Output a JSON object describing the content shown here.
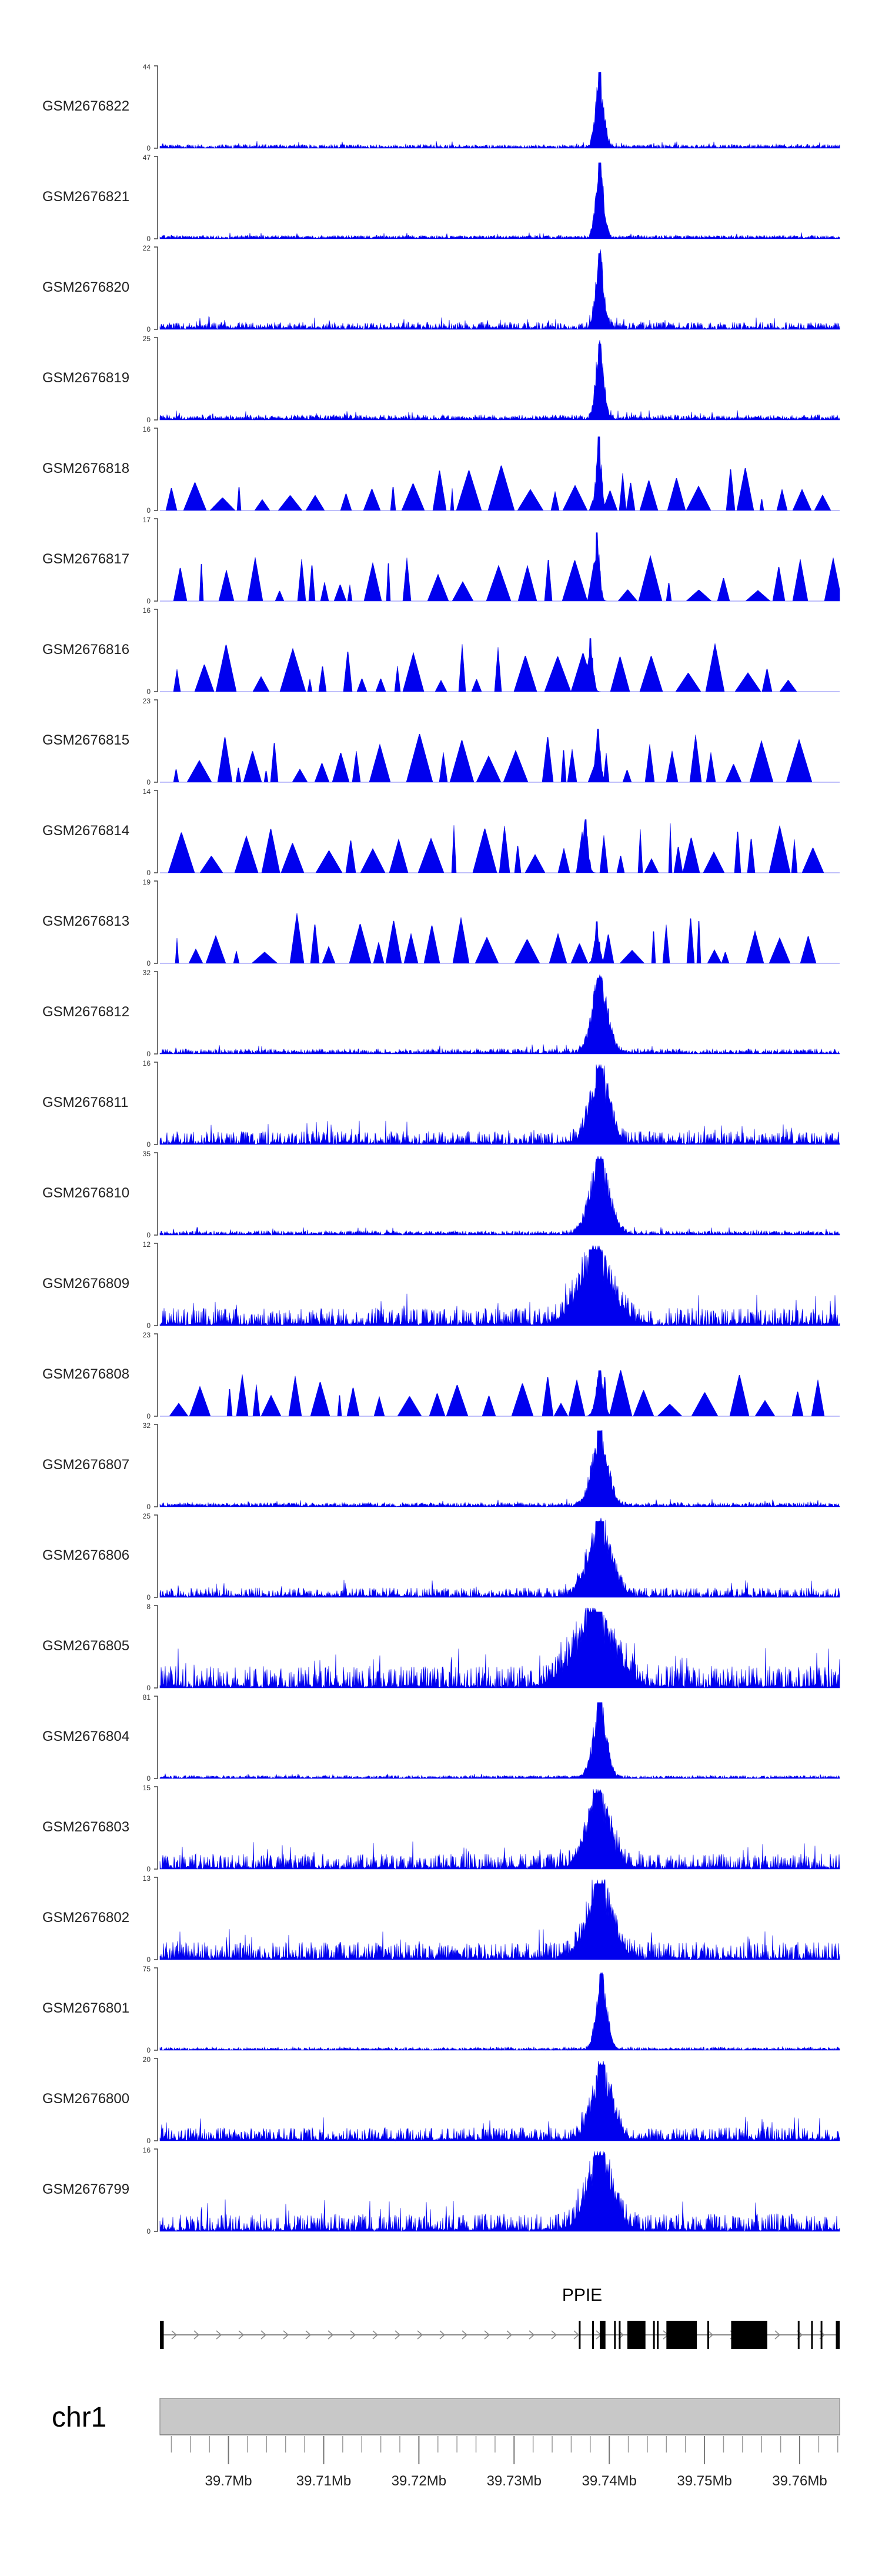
{
  "chart_data": {
    "type": "area",
    "colors": {
      "signal": "#0000ee",
      "axis": "#444444",
      "ideogram": "#c8c8c8",
      "gene": "#000000"
    },
    "x_range": [
      39.6928,
      39.7642
    ],
    "x_unit": "Mb",
    "x_ticks": [
      {
        "value": 39.7,
        "label": "39.7Mb"
      },
      {
        "value": 39.71,
        "label": "39.71Mb"
      },
      {
        "value": 39.72,
        "label": "39.72Mb"
      },
      {
        "value": 39.73,
        "label": "39.73Mb"
      },
      {
        "value": 39.74,
        "label": "39.74Mb"
      },
      {
        "value": 39.75,
        "label": "39.75Mb"
      },
      {
        "value": 39.76,
        "label": "39.76Mb"
      }
    ],
    "chromosome": "chr1",
    "gene": {
      "name": "PPIE",
      "start": 39.6928,
      "end": 39.7642,
      "strand": "+",
      "exons": [
        {
          "start": 39.6928,
          "end": 39.6932
        },
        {
          "start": 39.739,
          "end": 39.7396
        },
        {
          "start": 39.7419,
          "end": 39.7438
        },
        {
          "start": 39.746,
          "end": 39.7492
        },
        {
          "start": 39.7528,
          "end": 39.7566
        },
        {
          "start": 39.7638,
          "end": 39.7642
        }
      ]
    },
    "tracks": [
      {
        "name": "GSM2676822",
        "ymin": 0,
        "ymax": 44,
        "peak": 39.739,
        "peak_frac": 1.0,
        "peak_width": 0.0006,
        "background": 0.09,
        "style": "dense",
        "seed": 1
      },
      {
        "name": "GSM2676821",
        "ymin": 0,
        "ymax": 47,
        "peak": 39.739,
        "peak_frac": 1.0,
        "peak_width": 0.0006,
        "background": 0.08,
        "style": "dense",
        "seed": 2
      },
      {
        "name": "GSM2676820",
        "ymin": 0,
        "ymax": 22,
        "peak": 39.739,
        "peak_frac": 1.0,
        "peak_width": 0.0006,
        "background": 0.16,
        "style": "dense",
        "seed": 3
      },
      {
        "name": "GSM2676819",
        "ymin": 0,
        "ymax": 25,
        "peak": 39.739,
        "peak_frac": 1.0,
        "peak_width": 0.0006,
        "background": 0.12,
        "style": "dense",
        "seed": 4
      },
      {
        "name": "GSM2676818",
        "ymin": 0,
        "ymax": 16,
        "peak": 39.7389,
        "peak_frac": 0.97,
        "peak_width": 0.0004,
        "background": 0.5,
        "style": "spiky",
        "seed": 5
      },
      {
        "name": "GSM2676817",
        "ymin": 0,
        "ymax": 17,
        "peak": 39.7387,
        "peak_frac": 0.9,
        "peak_width": 0.0004,
        "background": 0.5,
        "style": "spiky",
        "seed": 6
      },
      {
        "name": "GSM2676816",
        "ymin": 0,
        "ymax": 16,
        "peak": 39.738,
        "peak_frac": 0.7,
        "peak_width": 0.0004,
        "background": 0.55,
        "style": "spiky",
        "seed": 7
      },
      {
        "name": "GSM2676815",
        "ymin": 0,
        "ymax": 23,
        "peak": 39.7388,
        "peak_frac": 0.7,
        "peak_width": 0.0004,
        "background": 0.55,
        "style": "spiky",
        "seed": 8
      },
      {
        "name": "GSM2676814",
        "ymin": 0,
        "ymax": 14,
        "peak": 39.7375,
        "peak_frac": 0.7,
        "peak_width": 0.0004,
        "background": 0.55,
        "style": "spiky",
        "seed": 9
      },
      {
        "name": "GSM2676813",
        "ymin": 0,
        "ymax": 19,
        "peak": 39.7387,
        "peak_frac": 0.55,
        "peak_width": 0.0004,
        "background": 0.55,
        "style": "spiky",
        "seed": 10
      },
      {
        "name": "GSM2676812",
        "ymin": 0,
        "ymax": 32,
        "peak": 39.739,
        "peak_frac": 1.0,
        "peak_width": 0.0012,
        "background": 0.12,
        "style": "dense",
        "seed": 11
      },
      {
        "name": "GSM2676811",
        "ymin": 0,
        "ymax": 16,
        "peak": 39.739,
        "peak_frac": 1.0,
        "peak_width": 0.0015,
        "background": 0.3,
        "style": "dense",
        "seed": 12
      },
      {
        "name": "GSM2676810",
        "ymin": 0,
        "ymax": 35,
        "peak": 39.739,
        "peak_frac": 1.0,
        "peak_width": 0.0015,
        "background": 0.1,
        "style": "dense",
        "seed": 13
      },
      {
        "name": "GSM2676809",
        "ymin": 0,
        "ymax": 12,
        "peak": 39.7385,
        "peak_frac": 1.0,
        "peak_width": 0.0025,
        "background": 0.4,
        "style": "dense",
        "seed": 14
      },
      {
        "name": "GSM2676808",
        "ymin": 0,
        "ymax": 23,
        "peak": 39.739,
        "peak_frac": 0.6,
        "peak_width": 0.0006,
        "background": 0.55,
        "style": "spiky",
        "seed": 15
      },
      {
        "name": "GSM2676807",
        "ymin": 0,
        "ymax": 32,
        "peak": 39.739,
        "peak_frac": 1.0,
        "peak_width": 0.0012,
        "background": 0.1,
        "style": "dense",
        "seed": 16
      },
      {
        "name": "GSM2676806",
        "ymin": 0,
        "ymax": 25,
        "peak": 39.739,
        "peak_frac": 1.0,
        "peak_width": 0.0018,
        "background": 0.22,
        "style": "dense",
        "seed": 17
      },
      {
        "name": "GSM2676805",
        "ymin": 0,
        "ymax": 8,
        "peak": 39.7385,
        "peak_frac": 1.0,
        "peak_width": 0.003,
        "background": 0.5,
        "style": "dense",
        "seed": 18
      },
      {
        "name": "GSM2676804",
        "ymin": 0,
        "ymax": 81,
        "peak": 39.739,
        "peak_frac": 1.0,
        "peak_width": 0.001,
        "background": 0.06,
        "style": "dense",
        "seed": 19
      },
      {
        "name": "GSM2676803",
        "ymin": 0,
        "ymax": 15,
        "peak": 39.7388,
        "peak_frac": 1.0,
        "peak_width": 0.0018,
        "background": 0.35,
        "style": "dense",
        "seed": 20
      },
      {
        "name": "GSM2676802",
        "ymin": 0,
        "ymax": 13,
        "peak": 39.739,
        "peak_frac": 1.0,
        "peak_width": 0.002,
        "background": 0.4,
        "style": "dense",
        "seed": 21
      },
      {
        "name": "GSM2676801",
        "ymin": 0,
        "ymax": 75,
        "peak": 39.7392,
        "peak_frac": 1.0,
        "peak_width": 0.0008,
        "background": 0.05,
        "style": "dense",
        "seed": 22
      },
      {
        "name": "GSM2676800",
        "ymin": 0,
        "ymax": 20,
        "peak": 39.7392,
        "peak_frac": 1.0,
        "peak_width": 0.0015,
        "background": 0.3,
        "style": "dense",
        "seed": 23
      },
      {
        "name": "GSM2676799",
        "ymin": 0,
        "ymax": 16,
        "peak": 39.739,
        "peak_frac": 1.0,
        "peak_width": 0.002,
        "background": 0.4,
        "style": "dense",
        "seed": 24
      }
    ]
  }
}
